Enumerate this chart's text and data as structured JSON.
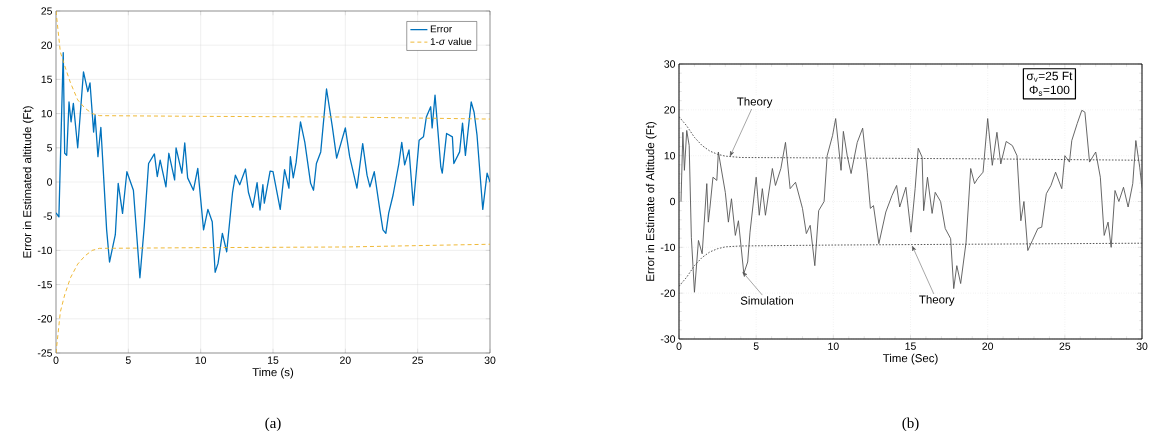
{
  "chart_data": [
    {
      "type": "line",
      "title": "(a)",
      "xlabel": "Time (s)",
      "ylabel": "Error in Estimated altitude (Ft)",
      "xlim": [
        0,
        30
      ],
      "ylim": [
        -25,
        25
      ],
      "xticks": [
        0,
        5,
        10,
        15,
        20,
        25,
        30
      ],
      "yticks": [
        -25,
        -20,
        -15,
        -10,
        -5,
        0,
        5,
        10,
        15,
        20,
        25
      ],
      "grid": true,
      "legend": "top right",
      "series": [
        {
          "name": "Error",
          "color": "#0072bd",
          "line_style": "solid",
          "x": [
            0,
            0.2,
            0.5,
            0.6,
            0.74,
            0.9,
            1.04,
            1.2,
            1.5,
            1.9,
            2.2,
            2.35,
            2.6,
            2.7,
            2.9,
            3.1,
            3.5,
            3.7,
            4.1,
            4.3,
            4.6,
            4.9,
            5.35,
            5.8,
            6.1,
            6.4,
            6.8,
            7.0,
            7.2,
            7.6,
            7.8,
            8.2,
            8.3,
            8.7,
            8.9,
            9.1,
            9.5,
            9.8,
            10.2,
            10.5,
            10.8,
            11.0,
            11.2,
            11.5,
            11.8,
            12.2,
            12.4,
            12.7,
            13.1,
            13.3,
            13.6,
            13.9,
            14.1,
            14.3,
            14.4,
            14.8,
            15.0,
            15.5,
            15.8,
            16.1,
            16.2,
            16.4,
            16.6,
            16.9,
            17.2,
            17.6,
            17.8,
            18.0,
            18.3,
            18.7,
            19.1,
            19.4,
            20.0,
            20.3,
            20.8,
            21.2,
            21.5,
            21.7,
            22.0,
            22.4,
            22.6,
            22.8,
            23.0,
            23.3,
            23.7,
            23.9,
            24.1,
            24.4,
            24.7,
            25.1,
            25.4,
            25.6,
            25.9,
            26.0,
            26.2,
            26.6,
            26.7,
            27.0,
            27.4,
            27.5,
            27.9,
            28.1,
            28.3,
            28.7,
            28.9,
            29.1,
            29.5,
            29.8,
            30
          ],
          "values": [
            -4.5,
            -5.1,
            18.9,
            4.2,
            3.9,
            11.7,
            8.8,
            11.5,
            5,
            16.1,
            13.2,
            14.5,
            7.3,
            9.8,
            3.7,
            8,
            -7,
            -11.7,
            -7.7,
            -0.2,
            -4.6,
            1.5,
            -1.2,
            -14,
            -6.5,
            2.7,
            4.1,
            0.8,
            3.2,
            -0.7,
            4.2,
            0.3,
            5,
            1.3,
            5.7,
            0.6,
            -1.2,
            2,
            -7,
            -4,
            -5.8,
            -13.2,
            -11.9,
            -7.5,
            -10.2,
            -1.6,
            1,
            -0.4,
            1.9,
            -1.5,
            -3.7,
            -0.1,
            -4.1,
            -0.4,
            -3.1,
            1.6,
            1.5,
            -4,
            1.8,
            -0.9,
            3.7,
            0.6,
            2.9,
            8.8,
            5.8,
            -0.2,
            -1.2,
            2.7,
            4.4,
            13.6,
            8.1,
            3.5,
            7.9,
            3.7,
            -0.9,
            5.6,
            1,
            -0.7,
            1.5,
            -4.3,
            -7,
            -7.5,
            -4.5,
            -1.9,
            2.7,
            5.8,
            2.5,
            4.7,
            -3.4,
            6.1,
            6.6,
            9.5,
            11,
            7.9,
            12.7,
            2.2,
            1.3,
            7.1,
            6.6,
            2.7,
            4.4,
            8.6,
            3.9,
            11.7,
            10.2,
            6.9,
            -4,
            1.3,
            0
          ]
        },
        {
          "name": "1-*σ* value",
          "color": "#edb120",
          "line_style": "dashed",
          "x": [
            0,
            0.3,
            0.6,
            1,
            1.5,
            2,
            2.5,
            3,
            10,
            20,
            30
          ],
          "values": [
            25,
            19,
            17,
            14.5,
            12,
            10.8,
            10,
            9.7,
            9.6,
            9.5,
            9.2
          ]
        },
        {
          "color": "#edb120",
          "line_style": "dashed",
          "x": [
            0,
            0.3,
            0.6,
            1,
            1.5,
            2,
            2.5,
            3,
            10,
            20,
            30
          ],
          "values": [
            -25,
            -19,
            -16.5,
            -14,
            -12,
            -10.8,
            -10,
            -9.7,
            -9.6,
            -9.5,
            -9.1
          ]
        }
      ]
    },
    {
      "type": "line",
      "title": "(b)",
      "xlabel": "Time (Sec)",
      "ylabel": "Error in Estimate of Altitude (Ft)",
      "xlim": [
        0,
        30
      ],
      "ylim": [
        -30,
        30
      ],
      "xticks": [
        0,
        5,
        10,
        15,
        20,
        25,
        30
      ],
      "yticks": [
        -30,
        -20,
        -10,
        0,
        10,
        20,
        30
      ],
      "grid": true,
      "annotations": [
        "σ$_{v}$=25 Ft",
        "Φ$_{s}$=100",
        {
          "text": "Theory",
          "x": 3.3,
          "y": 9.8
        },
        {
          "text": "Simulation",
          "x": 4.1,
          "y": -15.3
        },
        {
          "text": "Theory",
          "x": 15.1,
          "y": -9.6
        }
      ],
      "series": [
        {
          "color": "#555555",
          "line_style": "solid",
          "x": [
            0.13,
            0.25,
            0.35,
            0.5,
            0.66,
            0.8,
            1.0,
            1.26,
            1.5,
            1.8,
            1.9,
            2.0,
            2.2,
            2.45,
            2.55,
            3.0,
            3.2,
            3.4,
            3.65,
            3.85,
            4.2,
            4.45,
            4.6,
            5.0,
            5.2,
            5.4,
            5.6,
            6.05,
            6.25,
            6.6,
            6.9,
            7.2,
            7.55,
            8.0,
            8.25,
            8.5,
            8.8,
            9.05,
            9.4,
            9.6,
            9.95,
            10.15,
            10.5,
            10.65,
            10.9,
            11.15,
            11.55,
            11.9,
            12.2,
            12.4,
            12.6,
            12.95,
            13.4,
            13.8,
            14.1,
            14.3,
            14.7,
            15.03,
            15.3,
            15.5,
            15.75,
            15.85,
            16.1,
            16.4,
            16.6,
            16.95,
            17.25,
            17.6,
            17.8,
            18.0,
            18.25,
            18.6,
            18.9,
            19.15,
            19.35,
            19.7,
            20.0,
            20.3,
            20.6,
            20.85,
            21.2,
            21.6,
            21.9,
            22.15,
            22.35,
            22.6,
            22.9,
            23.25,
            23.5,
            23.8,
            24.1,
            24.4,
            24.8,
            25.0,
            25.3,
            25.45,
            25.8,
            26.1,
            26.3,
            26.6,
            27.0,
            27.3,
            27.55,
            27.8,
            28.0,
            28.25,
            28.5,
            28.8,
            29.1,
            29.4,
            29.6,
            29.85,
            30
          ],
          "values": [
            0,
            15.1,
            6.8,
            15.5,
            12.2,
            -7.8,
            -19.8,
            -8.5,
            -11.4,
            3.9,
            -4.5,
            -1.5,
            5.3,
            4.6,
            10.8,
            2,
            -4.5,
            0.6,
            -7.4,
            -4.2,
            -15.7,
            -13.2,
            -6.7,
            5.3,
            -3,
            2.8,
            -3,
            7.2,
            3.5,
            7.2,
            12.9,
            2.8,
            4.2,
            -1.5,
            -7,
            -5.2,
            -14,
            -2,
            0,
            10,
            14.4,
            18.1,
            6.8,
            15.3,
            10,
            6.1,
            12.9,
            16,
            6.4,
            -1.5,
            -0.9,
            -9.2,
            -2.3,
            1.3,
            3.5,
            -1.2,
            3.1,
            -6.7,
            2.8,
            11.6,
            9.7,
            -2,
            5.3,
            -2.6,
            2,
            0,
            -5.9,
            -8.1,
            -19,
            -14,
            -17.9,
            -8.9,
            7.2,
            3.9,
            5,
            6.4,
            18.1,
            7.9,
            15.1,
            8.2,
            13.1,
            12.2,
            10,
            -4.2,
            0,
            -10.7,
            -8.5,
            -5.9,
            -5.6,
            1.7,
            3.5,
            6.4,
            2.8,
            10,
            8.6,
            13.3,
            17,
            19.9,
            19.5,
            8.6,
            10.8,
            5.3,
            -7.4,
            -4.5,
            -10,
            2.4,
            0,
            3.1,
            -1.2,
            3.9,
            13.3,
            7.5,
            3
          ]
        },
        {
          "color": "#444444",
          "line_style": "dotted",
          "x": [
            0,
            0.5,
            1,
            1.5,
            2,
            2.5,
            3,
            4,
            10,
            20,
            30
          ],
          "values": [
            18.5,
            16.5,
            14,
            12.2,
            11,
            10.3,
            9.9,
            9.6,
            9.5,
            9.3,
            9
          ]
        },
        {
          "color": "#444444",
          "line_style": "dotted",
          "x": [
            0,
            0.5,
            1,
            1.5,
            2,
            2.5,
            3,
            4,
            10,
            20,
            30
          ],
          "values": [
            -18.5,
            -16.5,
            -14,
            -12.2,
            -11,
            -10.3,
            -9.9,
            -9.7,
            -9.5,
            -9.3,
            -9.1
          ]
        }
      ]
    }
  ]
}
